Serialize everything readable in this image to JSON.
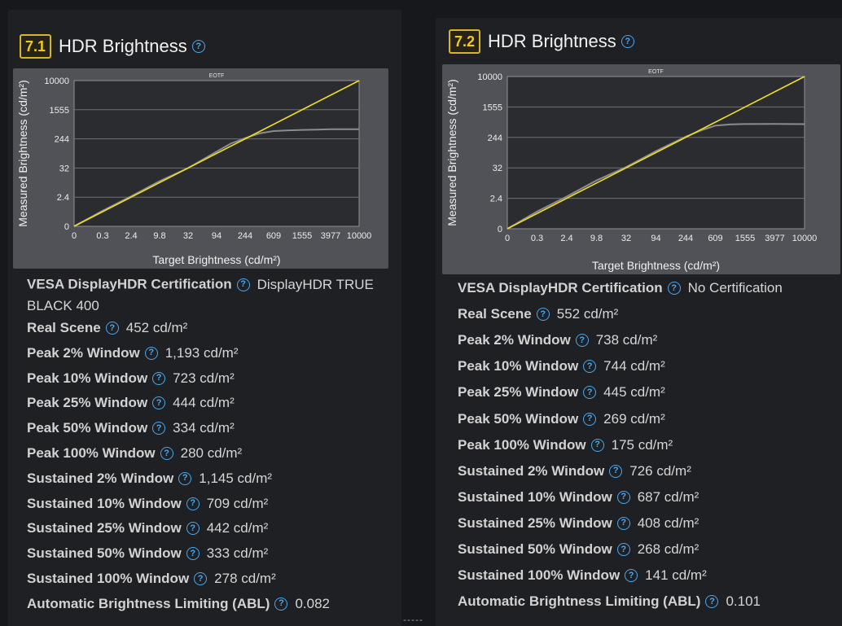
{
  "panels": [
    {
      "badge": "7.1",
      "title": "HDR Brightness",
      "help_icon": "question-circle-icon",
      "chart_data": {
        "type": "line",
        "title": "EOTF",
        "xlabel": "Target Brightness (cd/m²)",
        "ylabel": "Measured Brightness (cd/m²)",
        "x_ticks": [
          "0",
          "0.3",
          "2.4",
          "9.8",
          "32",
          "94",
          "244",
          "609",
          "1555",
          "3977",
          "10000"
        ],
        "y_ticks": [
          "0",
          "2.4",
          "32",
          "244",
          "1555",
          "10000"
        ],
        "grid": true,
        "series": [
          {
            "role": "target",
            "color": "#f2dc24",
            "x": [
              0,
              10000
            ],
            "y": [
              0,
              10000
            ]
          },
          {
            "role": "measured",
            "color": "#8a8c8e",
            "x": [
              0,
              0.3,
              2.4,
              9.8,
              32,
              94,
              150,
              244,
              400,
              609,
              1000,
              1555,
              2500,
              3977,
              6000,
              10000
            ],
            "y": [
              0,
              0.35,
              2.6,
              10,
              32,
              100,
              175,
              255,
              350,
              400,
              420,
              430,
              440,
              450,
              452,
              452
            ]
          }
        ]
      },
      "rows": [
        {
          "label": "VESA DisplayHDR Certification",
          "value": "DisplayHDR TRUE BLACK 400"
        },
        {
          "label": "Real Scene",
          "value": "452 cd/m²"
        },
        {
          "label": "Peak 2% Window",
          "value": "1,193 cd/m²"
        },
        {
          "label": "Peak 10% Window",
          "value": "723 cd/m²"
        },
        {
          "label": "Peak 25% Window",
          "value": "444 cd/m²"
        },
        {
          "label": "Peak 50% Window",
          "value": "334 cd/m²"
        },
        {
          "label": "Peak 100% Window",
          "value": "280 cd/m²"
        },
        {
          "label": "Sustained 2% Window",
          "value": "1,145 cd/m²"
        },
        {
          "label": "Sustained 10% Window",
          "value": "709 cd/m²"
        },
        {
          "label": "Sustained 25% Window",
          "value": "442 cd/m²"
        },
        {
          "label": "Sustained 50% Window",
          "value": "333 cd/m²"
        },
        {
          "label": "Sustained 100% Window",
          "value": "278 cd/m²"
        },
        {
          "label": "Automatic Brightness Limiting (ABL)",
          "value": "0.082"
        }
      ]
    },
    {
      "badge": "7.2",
      "title": "HDR Brightness",
      "help_icon": "question-circle-icon",
      "chart_data": {
        "type": "line",
        "title": "EOTF",
        "xlabel": "Target Brightness (cd/m²)",
        "ylabel": "Measured Brightness (cd/m²)",
        "x_ticks": [
          "0",
          "0.3",
          "2.4",
          "9.8",
          "32",
          "94",
          "244",
          "609",
          "1555",
          "3977",
          "10000"
        ],
        "y_ticks": [
          "0",
          "2.4",
          "32",
          "244",
          "1555",
          "10000"
        ],
        "grid": true,
        "series": [
          {
            "role": "target",
            "color": "#f2dc24",
            "x": [
              0,
              10000
            ],
            "y": [
              0,
              10000
            ]
          },
          {
            "role": "measured",
            "color": "#8a8c8e",
            "x": [
              0,
              0.3,
              2.4,
              9.8,
              32,
              94,
              244,
              400,
              609,
              1000,
              1555,
              3977,
              10000
            ],
            "y": [
              0,
              0.4,
              2.8,
              11,
              34,
              98,
              255,
              380,
              500,
              540,
              550,
              552,
              548
            ]
          }
        ]
      },
      "rows": [
        {
          "label": "VESA DisplayHDR Certification",
          "value": "No Certification"
        },
        {
          "label": "Real Scene",
          "value": "552 cd/m²"
        },
        {
          "label": "Peak 2% Window",
          "value": "738 cd/m²"
        },
        {
          "label": "Peak 10% Window",
          "value": "744 cd/m²"
        },
        {
          "label": "Peak 25% Window",
          "value": "445 cd/m²"
        },
        {
          "label": "Peak 50% Window",
          "value": "269 cd/m²"
        },
        {
          "label": "Peak 100% Window",
          "value": "175 cd/m²"
        },
        {
          "label": "Sustained 2% Window",
          "value": "726 cd/m²"
        },
        {
          "label": "Sustained 10% Window",
          "value": "687 cd/m²"
        },
        {
          "label": "Sustained 25% Window",
          "value": "408 cd/m²"
        },
        {
          "label": "Sustained 50% Window",
          "value": "268 cd/m²"
        },
        {
          "label": "Sustained 100% Window",
          "value": "141 cd/m²"
        },
        {
          "label": "Automatic Brightness Limiting (ABL)",
          "value": "0.101"
        }
      ]
    }
  ],
  "divider_text": "-----"
}
